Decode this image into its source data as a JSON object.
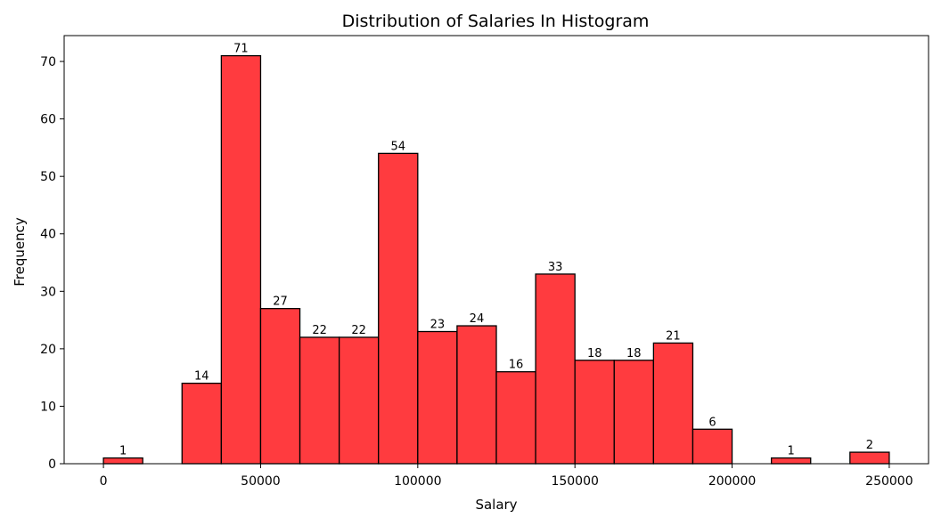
{
  "chart_data": {
    "type": "bar",
    "title": "Distribution of Salaries In Histogram",
    "xlabel": "Salary",
    "ylabel": "Frequency",
    "xlim": [
      -12500,
      262500
    ],
    "ylim": [
      0,
      74.5
    ],
    "x_ticks": [
      0,
      50000,
      100000,
      150000,
      200000,
      250000
    ],
    "y_ticks": [
      0,
      10,
      20,
      30,
      40,
      50,
      60,
      70
    ],
    "bin_width": 12500,
    "bin_starts": [
      0,
      12500,
      25000,
      37500,
      50000,
      62500,
      75000,
      87500,
      100000,
      112500,
      125000,
      137500,
      150000,
      162500,
      175000,
      187500,
      200000,
      212500,
      225000,
      237500
    ],
    "values": [
      1,
      0,
      14,
      71,
      27,
      22,
      22,
      54,
      23,
      24,
      16,
      33,
      18,
      18,
      21,
      6,
      0,
      1,
      0,
      2
    ],
    "bar_color": "#ff3b3f",
    "edge_color": "#000000",
    "grid": false
  }
}
